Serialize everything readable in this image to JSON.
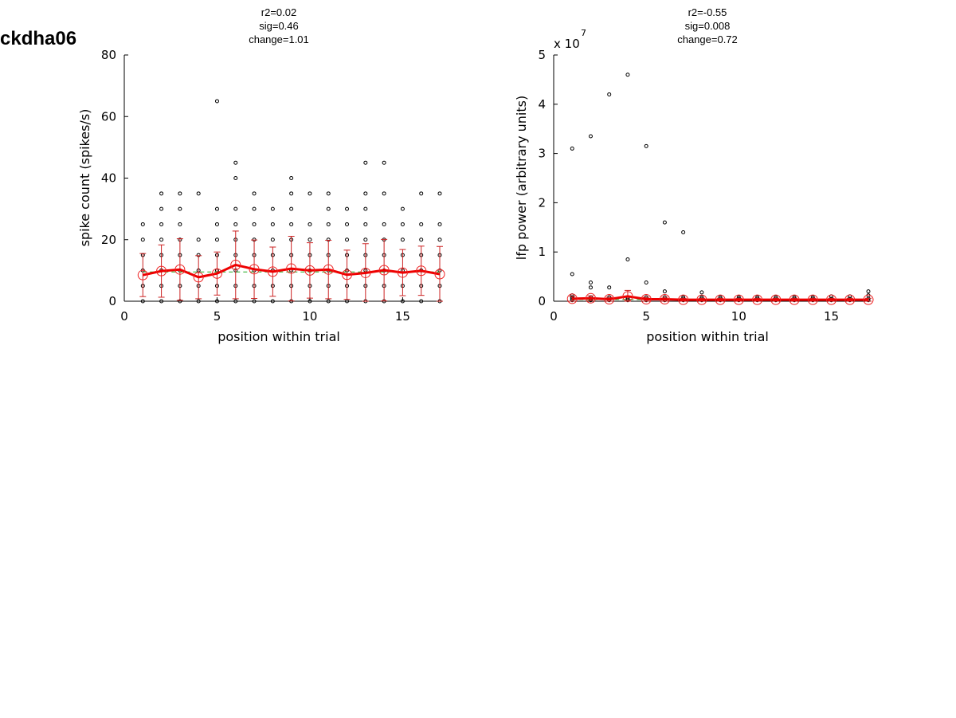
{
  "page_title": "ckdha06",
  "colors": {
    "mean_line": "#ee0000",
    "error_bar": "#cc2222",
    "mean_marker": "#ee2222",
    "fit_line": "#22aa22",
    "trial_point": "#000000"
  },
  "chart_data": [
    {
      "type": "scatter",
      "title_lines": [
        "r2=0.02",
        "sig=0.46",
        "change=1.01"
      ],
      "xlabel": "position within trial",
      "ylabel": "spike count (spikes/s)",
      "xlim": [
        0,
        17
      ],
      "ylim": [
        0,
        80
      ],
      "xticks": [
        0,
        5,
        10,
        15
      ],
      "yticks": [
        0,
        20,
        40,
        60,
        80
      ],
      "exponent_label": "",
      "trial_points": [
        {
          "x": 1,
          "ys": [
            0,
            5,
            10,
            15,
            20,
            25
          ]
        },
        {
          "x": 2,
          "ys": [
            0,
            5,
            10,
            15,
            20,
            25,
            30,
            35
          ]
        },
        {
          "x": 3,
          "ys": [
            0,
            5,
            10,
            15,
            20,
            25,
            30,
            35
          ]
        },
        {
          "x": 4,
          "ys": [
            0,
            5,
            10,
            15,
            20,
            35
          ]
        },
        {
          "x": 5,
          "ys": [
            0,
            5,
            10,
            15,
            20,
            25,
            30,
            65
          ]
        },
        {
          "x": 6,
          "ys": [
            0,
            5,
            10,
            15,
            20,
            25,
            30,
            40,
            45
          ]
        },
        {
          "x": 7,
          "ys": [
            0,
            5,
            10,
            15,
            20,
            25,
            30,
            35
          ]
        },
        {
          "x": 8,
          "ys": [
            0,
            5,
            10,
            15,
            20,
            25,
            30
          ]
        },
        {
          "x": 9,
          "ys": [
            0,
            5,
            10,
            15,
            20,
            25,
            30,
            35,
            40
          ]
        },
        {
          "x": 10,
          "ys": [
            0,
            5,
            10,
            15,
            20,
            25,
            35
          ]
        },
        {
          "x": 11,
          "ys": [
            0,
            5,
            10,
            15,
            20,
            25,
            30,
            35
          ]
        },
        {
          "x": 12,
          "ys": [
            0,
            5,
            10,
            15,
            20,
            25,
            30
          ]
        },
        {
          "x": 13,
          "ys": [
            0,
            5,
            10,
            15,
            20,
            25,
            30,
            35,
            45
          ]
        },
        {
          "x": 14,
          "ys": [
            0,
            5,
            10,
            15,
            20,
            25,
            35,
            45
          ]
        },
        {
          "x": 15,
          "ys": [
            0,
            5,
            10,
            15,
            20,
            25,
            30
          ]
        },
        {
          "x": 16,
          "ys": [
            0,
            5,
            10,
            15,
            20,
            25,
            35
          ]
        },
        {
          "x": 17,
          "ys": [
            0,
            5,
            10,
            15,
            20,
            25,
            35
          ]
        }
      ],
      "mean": {
        "x": [
          1,
          2,
          3,
          4,
          5,
          6,
          7,
          8,
          9,
          10,
          11,
          12,
          13,
          14,
          15,
          16,
          17
        ],
        "y": [
          8.5,
          9.8,
          10.3,
          7.8,
          9.0,
          11.8,
          10.4,
          9.6,
          10.6,
          10.0,
          10.3,
          8.6,
          9.2,
          10.1,
          9.3,
          9.9,
          8.8
        ],
        "err": [
          7.0,
          8.5,
          10.0,
          7.0,
          7.0,
          11.0,
          9.5,
          8.0,
          10.5,
          9.0,
          9.5,
          8.0,
          9.5,
          10.0,
          7.5,
          8.0,
          9.0
        ]
      },
      "fit": {
        "x": [
          1,
          17
        ],
        "y": [
          9.5,
          9.5
        ]
      }
    },
    {
      "type": "scatter",
      "title_lines": [
        "r2=-0.55",
        "sig=0.008",
        "change=0.72"
      ],
      "xlabel": "position within trial",
      "ylabel": "lfp power (arbitrary units)",
      "xlim": [
        0,
        17
      ],
      "ylim": [
        0,
        5
      ],
      "xticks": [
        0,
        5,
        10,
        15
      ],
      "yticks": [
        0,
        1,
        2,
        3,
        4,
        5
      ],
      "exponent_label": "x 10",
      "exponent_power": "7",
      "trial_points": [
        {
          "x": 1,
          "ys": [
            0.02,
            0.05,
            0.08,
            0.12,
            0.55,
            3.1
          ]
        },
        {
          "x": 2,
          "ys": [
            0.02,
            0.05,
            0.08,
            0.28,
            0.38,
            3.35
          ]
        },
        {
          "x": 3,
          "ys": [
            0.02,
            0.05,
            0.08,
            0.28,
            4.2
          ]
        },
        {
          "x": 4,
          "ys": [
            0.02,
            0.05,
            0.08,
            0.85,
            4.6
          ]
        },
        {
          "x": 5,
          "ys": [
            0.02,
            0.05,
            0.08,
            0.38,
            3.15
          ]
        },
        {
          "x": 6,
          "ys": [
            0.02,
            0.05,
            0.08,
            0.2,
            1.6
          ]
        },
        {
          "x": 7,
          "ys": [
            0.02,
            0.05,
            0.08,
            1.4
          ]
        },
        {
          "x": 8,
          "ys": [
            0.02,
            0.05,
            0.08,
            0.18
          ]
        },
        {
          "x": 9,
          "ys": [
            0.02,
            0.05,
            0.08
          ]
        },
        {
          "x": 10,
          "ys": [
            0.02,
            0.05,
            0.08
          ]
        },
        {
          "x": 11,
          "ys": [
            0.02,
            0.05,
            0.08
          ]
        },
        {
          "x": 12,
          "ys": [
            0.02,
            0.05,
            0.08
          ]
        },
        {
          "x": 13,
          "ys": [
            0.02,
            0.05,
            0.08
          ]
        },
        {
          "x": 14,
          "ys": [
            0.02,
            0.05,
            0.08
          ]
        },
        {
          "x": 15,
          "ys": [
            0.02,
            0.05,
            0.1
          ]
        },
        {
          "x": 16,
          "ys": [
            0.02,
            0.05,
            0.1
          ]
        },
        {
          "x": 17,
          "ys": [
            0.02,
            0.05,
            0.12,
            0.2
          ]
        }
      ],
      "mean": {
        "x": [
          1,
          2,
          3,
          4,
          5,
          6,
          7,
          8,
          9,
          10,
          11,
          12,
          13,
          14,
          15,
          16,
          17
        ],
        "y": [
          0.05,
          0.06,
          0.04,
          0.1,
          0.04,
          0.04,
          0.03,
          0.03,
          0.03,
          0.03,
          0.03,
          0.03,
          0.03,
          0.03,
          0.03,
          0.03,
          0.03
        ],
        "err": [
          0.05,
          0.05,
          0.04,
          0.12,
          0.04,
          0.04,
          0.03,
          0.03,
          0.03,
          0.03,
          0.03,
          0.03,
          0.03,
          0.03,
          0.03,
          0.03,
          0.03
        ]
      },
      "fit": {
        "x": [
          1,
          17
        ],
        "y": [
          0.035,
          0.035
        ]
      }
    }
  ]
}
